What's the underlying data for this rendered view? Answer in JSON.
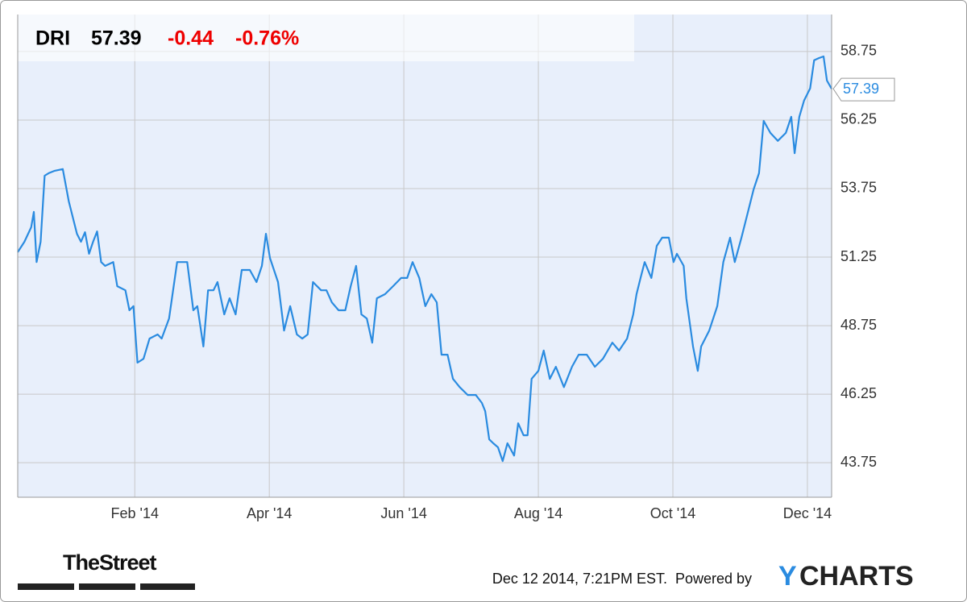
{
  "chart_data": {
    "type": "line",
    "price": 57.39,
    "change": -0.44,
    "change_pct": "-0.76%",
    "x": [
      -0.74,
      -0.64,
      -0.54,
      -0.5,
      -0.46,
      -0.4,
      -0.34,
      -0.28,
      -0.19,
      -0.07,
      0.02,
      0.14,
      0.2,
      0.26,
      0.32,
      0.38,
      0.44,
      0.5,
      0.56,
      0.68,
      0.74,
      0.86,
      0.92,
      0.98,
      1.04,
      1.13,
      1.22,
      1.34,
      1.4,
      1.51,
      1.63,
      1.78,
      1.87,
      1.93,
      2.02,
      2.09,
      2.17,
      2.23,
      2.33,
      2.41,
      2.5,
      2.59,
      2.71,
      2.81,
      2.89,
      2.95,
      3.01,
      3.13,
      3.22,
      3.31,
      3.41,
      3.49,
      3.57,
      3.65,
      3.77,
      3.85,
      3.93,
      4.03,
      4.13,
      4.21,
      4.29,
      4.37,
      4.45,
      4.53,
      4.6,
      4.72,
      4.84,
      4.96,
      5.05,
      5.13,
      5.23,
      5.32,
      5.41,
      5.49,
      5.56,
      5.65,
      5.73,
      5.83,
      5.95,
      6.07,
      6.16,
      6.21,
      6.27,
      6.33,
      6.4,
      6.47,
      6.54,
      6.64,
      6.7,
      6.78,
      6.84,
      6.9,
      7.0,
      7.08,
      7.17,
      7.26,
      7.38,
      7.5,
      7.6,
      7.72,
      7.84,
      7.96,
      8.1,
      8.2,
      8.32,
      8.41,
      8.46,
      8.52,
      8.58,
      8.68,
      8.76,
      8.84,
      8.94,
      9.01,
      9.06,
      9.16,
      9.2,
      9.3,
      9.37,
      9.42,
      9.54,
      9.66,
      9.75,
      9.85,
      9.92,
      10.02,
      10.11,
      10.2,
      10.28,
      10.35,
      10.45,
      10.56,
      10.68,
      10.76,
      10.81,
      10.88,
      10.95,
      11.04,
      11.1,
      11.17,
      11.24,
      11.29,
      11.36
    ],
    "series": [
      {
        "name": "DRI",
        "color": "#2a8be0",
        "values": [
          51.43,
          51.81,
          52.34,
          52.9,
          51.07,
          51.81,
          54.22,
          54.31,
          54.4,
          54.46,
          53.28,
          52.1,
          51.81,
          52.16,
          51.37,
          51.81,
          52.19,
          51.07,
          50.93,
          51.07,
          50.19,
          50.04,
          49.31,
          49.46,
          47.4,
          47.54,
          48.28,
          48.43,
          48.28,
          49.01,
          51.07,
          51.07,
          49.31,
          49.46,
          47.99,
          50.04,
          50.04,
          50.34,
          49.16,
          49.75,
          49.16,
          50.78,
          50.78,
          50.34,
          50.93,
          52.1,
          51.22,
          50.34,
          48.57,
          49.46,
          48.43,
          48.28,
          48.43,
          50.34,
          50.04,
          50.04,
          49.6,
          49.31,
          49.31,
          50.19,
          50.93,
          49.16,
          49.01,
          48.13,
          49.75,
          49.9,
          50.19,
          50.49,
          50.49,
          51.07,
          50.49,
          49.46,
          49.9,
          49.6,
          47.69,
          47.69,
          46.81,
          46.51,
          46.22,
          46.22,
          45.93,
          45.63,
          44.6,
          44.46,
          44.31,
          43.81,
          44.46,
          44.01,
          45.19,
          44.75,
          44.75,
          46.81,
          47.1,
          47.84,
          46.81,
          47.25,
          46.51,
          47.25,
          47.69,
          47.69,
          47.25,
          47.54,
          48.13,
          47.84,
          48.28,
          49.16,
          49.9,
          50.49,
          51.07,
          50.49,
          51.66,
          51.96,
          51.96,
          51.07,
          51.37,
          50.93,
          49.75,
          47.99,
          47.1,
          47.99,
          48.57,
          49.46,
          51.07,
          51.96,
          51.07,
          51.96,
          52.84,
          53.72,
          54.31,
          56.22,
          55.78,
          55.49,
          55.78,
          56.37,
          55.04,
          56.37,
          56.96,
          57.4,
          58.43,
          58.51,
          58.57,
          57.69,
          57.39
        ]
      }
    ],
    "xlim": [
      -0.74,
      11.36
    ],
    "xticks": [
      {
        "value": 1,
        "label": "Feb '14"
      },
      {
        "value": 3,
        "label": "Apr '14"
      },
      {
        "value": 5,
        "label": "Jun '14"
      },
      {
        "value": 7,
        "label": "Aug '14"
      },
      {
        "value": 9,
        "label": "Oct '14"
      },
      {
        "value": 11,
        "label": "Dec '14"
      }
    ],
    "ylim": [
      42.49,
      60.1
    ],
    "yticks": [
      43.75,
      46.25,
      48.75,
      51.25,
      53.75,
      56.25,
      58.75
    ],
    "grid": true
  },
  "footer": {
    "source": "TheStreet",
    "timestamp": "Dec 12 2014, 7:21PM EST.",
    "powered_by": "Powered by",
    "brand_initial": "Y",
    "brand_rest": "CHARTS"
  }
}
